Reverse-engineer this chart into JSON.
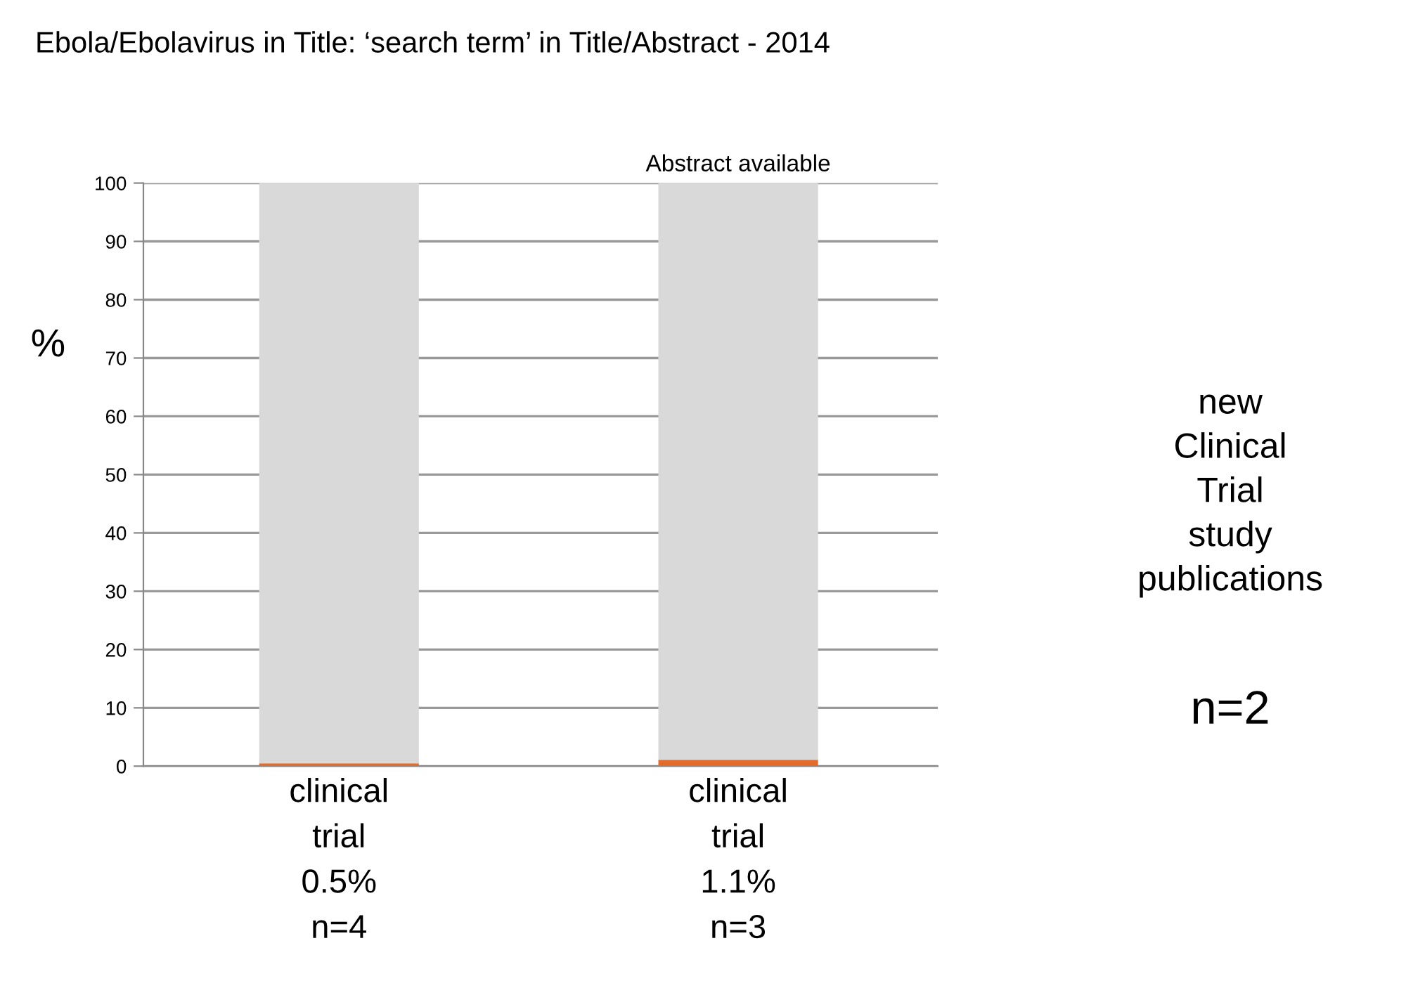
{
  "chart_data": {
    "type": "bar",
    "title": "Ebola/Ebolavirus in Title: ‘search term’ in Title/Abstract - 2014",
    "ylabel": "%",
    "categories": [
      "clinical\ntrial\n0.5%\nn=4",
      "clinical\ntrial\n1.1%\nn=3"
    ],
    "series": [
      {
        "color": "#e46c2a",
        "values": [
          0.5,
          1.1
        ]
      },
      {
        "color": "#d9d9d9",
        "values": [
          99.5,
          98.9
        ]
      }
    ],
    "stacked": true,
    "ylim": [
      0,
      100
    ],
    "yticks": [
      0,
      10,
      20,
      30,
      40,
      50,
      60,
      70,
      80,
      90,
      100
    ],
    "grid": "y",
    "annotations": [
      "Abstract available",
      "new\nClinical\nTrial\nstudy\npublications",
      "n=2"
    ]
  }
}
